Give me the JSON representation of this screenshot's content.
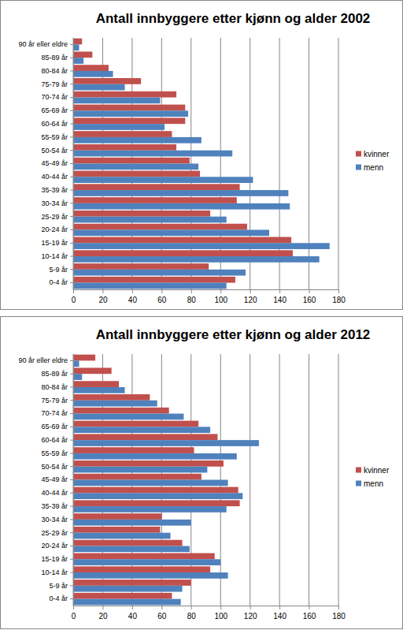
{
  "chart_data": [
    {
      "type": "bar",
      "title": "Antall innbyggere etter kjønn og alder 2002",
      "orientation": "horizontal",
      "grid": true,
      "legend": "right",
      "categories": [
        "0-4 år",
        "5-9 år",
        "10-14 år",
        "15-19 år",
        "20-24 år",
        "25-29 år",
        "30-34 år",
        "35-39 år",
        "40-44 år",
        "45-49 år",
        "50-54 år",
        "55-59 år",
        "60-64 år",
        "65-69 år",
        "70-74 år",
        "75-79 år",
        "80-84 år",
        "85-89 år",
        "90 år eller eldre"
      ],
      "series": [
        {
          "name": "kvinner",
          "color": "#c0504d",
          "values": [
            110,
            92,
            149,
            148,
            118,
            93,
            111,
            113,
            86,
            79,
            70,
            67,
            76,
            76,
            70,
            46,
            24,
            13,
            6
          ]
        },
        {
          "name": "menn",
          "color": "#4f81bd",
          "values": [
            104,
            117,
            167,
            174,
            133,
            104,
            147,
            146,
            122,
            85,
            108,
            87,
            62,
            78,
            59,
            35,
            27,
            7,
            4
          ]
        }
      ],
      "xlim": [
        0,
        180
      ],
      "xticks": [
        0,
        20,
        40,
        60,
        80,
        100,
        120,
        140,
        160,
        180
      ]
    },
    {
      "type": "bar",
      "title": "Antall innbyggere etter kjønn og alder 2012",
      "orientation": "horizontal",
      "grid": true,
      "legend": "right",
      "categories": [
        "0-4 år",
        "5-9 år",
        "10-14 år",
        "15-19 år",
        "20-24 år",
        "25-29 år",
        "30-34 år",
        "35-39 år",
        "40-44 år",
        "45-49 år",
        "50-54 år",
        "55-59 år",
        "60-64 år",
        "65-69 år",
        "70-74 år",
        "75-79 år",
        "80-84 år",
        "85-89 år",
        "90 år eller eldre"
      ],
      "series": [
        {
          "name": "kvinner",
          "color": "#c0504d",
          "values": [
            67,
            80,
            93,
            96,
            74,
            59,
            60,
            113,
            112,
            87,
            102,
            82,
            98,
            85,
            65,
            52,
            31,
            26,
            15
          ]
        },
        {
          "name": "menn",
          "color": "#4f81bd",
          "values": [
            73,
            74,
            105,
            100,
            79,
            66,
            80,
            104,
            115,
            105,
            91,
            111,
            126,
            93,
            75,
            57,
            35,
            6,
            4
          ]
        }
      ],
      "xlim": [
        0,
        180
      ],
      "xticks": [
        0,
        20,
        40,
        60,
        80,
        100,
        120,
        140,
        160,
        180
      ]
    }
  ]
}
